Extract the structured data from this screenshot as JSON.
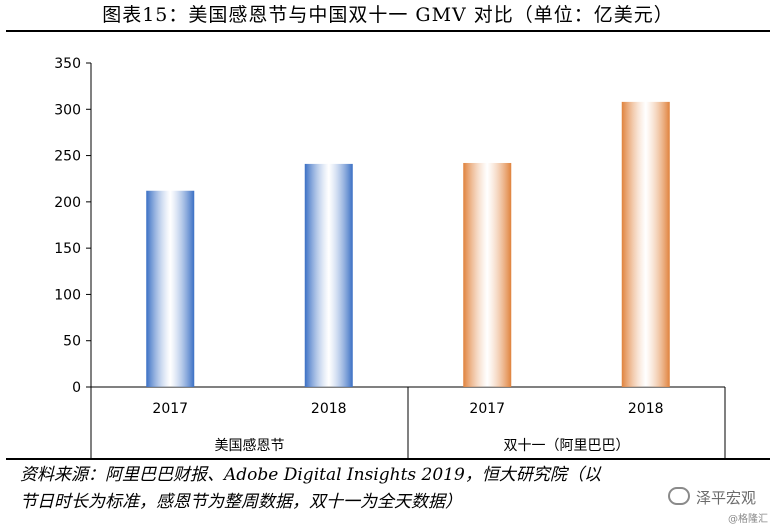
{
  "chart_data": {
    "type": "bar",
    "title": "图表15：美国感恩节与中国双十一 GMV 对比（单位：亿美元）",
    "groups": [
      {
        "name": "美国感恩节",
        "categories": [
          "2017",
          "2018"
        ],
        "values": [
          212,
          241
        ],
        "color": "#3a6fc4"
      },
      {
        "name": "双十一（阿里巴巴）",
        "categories": [
          "2017",
          "2018"
        ],
        "values": [
          242,
          308
        ],
        "color": "#e0823c"
      }
    ],
    "ylim": [
      0,
      350
    ],
    "yticks": [
      0,
      50,
      100,
      150,
      200,
      250,
      300,
      350
    ],
    "grid": false,
    "legend": "none"
  },
  "source": {
    "line1": "资料来源：阿里巴巴财报、Adobe Digital Insights 2019，恒大研究院（以",
    "line2": "节日时长为标准，感恩节为整周数据，双十一为全天数据）"
  },
  "watermark": {
    "name": "泽平宏观",
    "handle": "@格隆汇"
  }
}
